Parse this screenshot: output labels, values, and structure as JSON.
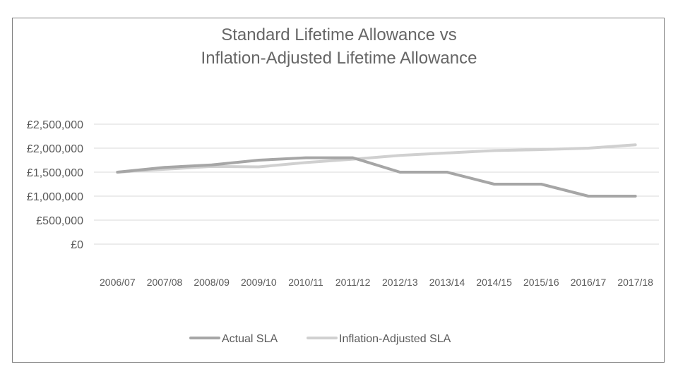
{
  "chart_data": {
    "type": "line",
    "title_lines": [
      "Standard Lifetime Allowance vs",
      "Inflation-Adjusted Lifetime Allowance"
    ],
    "categories": [
      "2006/07",
      "2007/08",
      "2008/09",
      "2009/10",
      "2010/11",
      "2011/12",
      "2012/13",
      "2013/14",
      "2014/15",
      "2015/16",
      "2016/17",
      "2017/18"
    ],
    "y_ticks": [
      0,
      500000,
      1000000,
      1500000,
      2000000,
      2500000
    ],
    "y_tick_labels": [
      "£0",
      "£500,000",
      "£1,000,000",
      "£1,500,000",
      "£2,000,000",
      "£2,500,000"
    ],
    "ylim": [
      0,
      2500000
    ],
    "grid": true,
    "legend_position": "bottom",
    "series": [
      {
        "name": "Actual SLA",
        "color": "#a6a6a6",
        "values": [
          1500000,
          1600000,
          1650000,
          1750000,
          1800000,
          1800000,
          1500000,
          1500000,
          1250000,
          1250000,
          1000000,
          1000000
        ]
      },
      {
        "name": "Inflation-Adjusted SLA",
        "color": "#d0d0d0",
        "values": [
          1500000,
          1560000,
          1620000,
          1610000,
          1700000,
          1770000,
          1850000,
          1900000,
          1950000,
          1970000,
          2000000,
          2070000
        ]
      }
    ]
  }
}
